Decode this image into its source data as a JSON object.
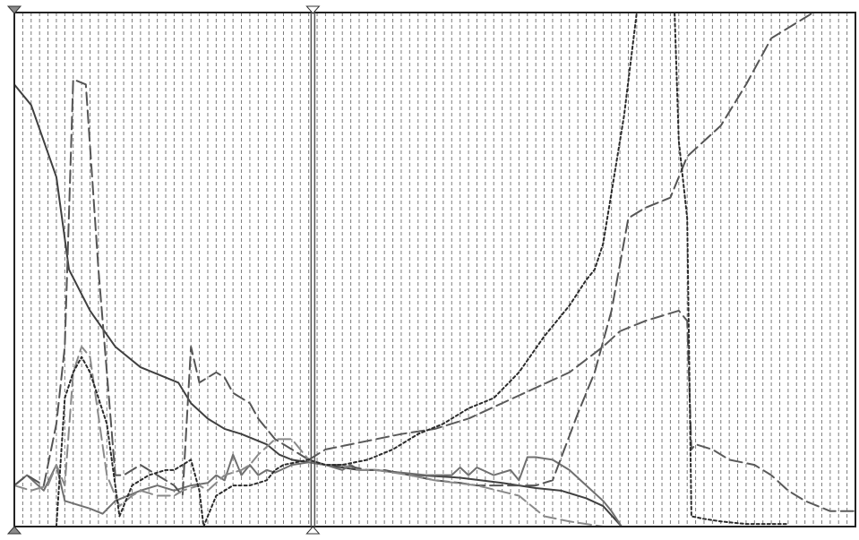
{
  "chart_data": {
    "type": "line",
    "title": "",
    "xlabel": "",
    "ylabel": "",
    "xlim": [
      0,
      100
    ],
    "ylim": [
      0,
      100
    ],
    "grid": "vertical-dashed",
    "grid_lines": 100,
    "legend": "none",
    "marker_position": 35.5,
    "series": [
      {
        "id": "solid-dark",
        "style": "solid",
        "color": "#404040",
        "points": [
          [
            0,
            86
          ],
          [
            2,
            82
          ],
          [
            5,
            68
          ],
          [
            6.5,
            50
          ],
          [
            9,
            42
          ],
          [
            12,
            35
          ],
          [
            15,
            31
          ],
          [
            18,
            29
          ],
          [
            19.5,
            28
          ],
          [
            21,
            24
          ],
          [
            23,
            21
          ],
          [
            25,
            19
          ],
          [
            27,
            18
          ],
          [
            28.5,
            17
          ],
          [
            30,
            16
          ],
          [
            31.5,
            14
          ],
          [
            33,
            13
          ],
          [
            35,
            12.5
          ],
          [
            37,
            12
          ],
          [
            39,
            11.5
          ],
          [
            41,
            11
          ],
          [
            43,
            11
          ],
          [
            48,
            10
          ],
          [
            53,
            9.5
          ],
          [
            58,
            8.5
          ],
          [
            60,
            8
          ],
          [
            62,
            7.5
          ],
          [
            65,
            7
          ],
          [
            68,
            5.5
          ],
          [
            70,
            4
          ],
          [
            72.2,
            0
          ],
          [
            79,
            0
          ]
        ]
      },
      {
        "id": "solid-gray",
        "style": "solid",
        "color": "#707070",
        "points": [
          [
            0,
            8
          ],
          [
            1.5,
            10
          ],
          [
            3.5,
            7
          ],
          [
            5,
            12
          ],
          [
            6,
            5
          ],
          [
            7,
            4.5
          ],
          [
            9,
            3.5
          ],
          [
            10.5,
            2.5
          ],
          [
            12,
            5
          ],
          [
            15,
            7
          ],
          [
            17,
            8
          ],
          [
            19,
            7
          ],
          [
            21,
            8
          ],
          [
            23,
            8.5
          ],
          [
            24,
            10
          ],
          [
            25,
            9
          ],
          [
            26,
            14
          ],
          [
            27,
            10
          ],
          [
            28,
            12
          ],
          [
            29,
            10
          ],
          [
            30,
            11
          ],
          [
            31,
            10.5
          ],
          [
            33,
            12
          ],
          [
            35,
            12.5
          ],
          [
            37,
            12
          ],
          [
            39,
            11
          ],
          [
            40,
            12
          ],
          [
            41,
            11
          ],
          [
            43,
            11
          ],
          [
            46,
            10.5
          ],
          [
            49,
            10
          ],
          [
            52,
            10
          ],
          [
            53,
            11.5
          ],
          [
            54,
            10
          ],
          [
            55,
            11.5
          ],
          [
            57,
            10
          ],
          [
            59,
            11
          ],
          [
            60,
            9
          ],
          [
            61,
            13.5
          ],
          [
            62,
            13.5
          ],
          [
            64,
            13
          ],
          [
            66,
            11
          ],
          [
            68,
            8
          ],
          [
            70,
            5
          ],
          [
            71,
            3
          ],
          [
            72.2,
            0
          ]
        ]
      },
      {
        "id": "dash-dark",
        "style": "dashed",
        "color": "#555555",
        "points": [
          [
            0,
            8
          ],
          [
            1.5,
            10
          ],
          [
            3.5,
            8
          ],
          [
            5,
            20
          ],
          [
            6,
            35
          ],
          [
            7,
            87
          ],
          [
            8.5,
            86
          ],
          [
            10,
            50
          ],
          [
            12,
            10
          ],
          [
            13,
            10
          ],
          [
            15,
            12
          ],
          [
            17,
            10
          ],
          [
            19,
            8
          ],
          [
            20,
            6
          ],
          [
            21,
            35
          ],
          [
            22,
            28
          ],
          [
            24,
            30
          ],
          [
            25,
            29
          ],
          [
            26,
            26
          ],
          [
            28,
            24
          ],
          [
            29,
            21
          ],
          [
            31,
            17
          ],
          [
            33,
            15
          ],
          [
            35,
            13
          ],
          [
            37,
            12
          ],
          [
            39,
            12
          ],
          [
            42,
            11
          ],
          [
            44,
            11
          ],
          [
            47,
            10
          ],
          [
            50,
            9
          ],
          [
            53,
            8.5
          ],
          [
            55,
            8
          ],
          [
            57,
            8
          ],
          [
            60,
            8
          ],
          [
            62,
            8
          ],
          [
            64,
            9
          ],
          [
            67,
            22
          ],
          [
            69,
            30
          ],
          [
            71,
            42
          ],
          [
            73,
            60
          ],
          [
            75,
            62
          ],
          [
            78,
            64
          ],
          [
            80,
            72
          ],
          [
            84,
            78
          ],
          [
            87,
            86
          ],
          [
            90,
            95
          ],
          [
            95,
            100
          ]
        ]
      },
      {
        "id": "dash-light",
        "style": "dashed",
        "color": "#8a8a8a",
        "points": [
          [
            0,
            8
          ],
          [
            2,
            7
          ],
          [
            4,
            8
          ],
          [
            5,
            12
          ],
          [
            6,
            8
          ],
          [
            7,
            30
          ],
          [
            8,
            35
          ],
          [
            9,
            33
          ],
          [
            11,
            10
          ],
          [
            12.5,
            4
          ],
          [
            14,
            6
          ],
          [
            15,
            7
          ],
          [
            17,
            6
          ],
          [
            19,
            6
          ],
          [
            20,
            7
          ],
          [
            22,
            8
          ],
          [
            23,
            7
          ],
          [
            25,
            10
          ],
          [
            27,
            11
          ],
          [
            28,
            12
          ],
          [
            29,
            14
          ],
          [
            31,
            17
          ],
          [
            33,
            17
          ],
          [
            35,
            13
          ],
          [
            37,
            12
          ],
          [
            39,
            12
          ],
          [
            41,
            11
          ],
          [
            43,
            11
          ],
          [
            47,
            10
          ],
          [
            50,
            9
          ],
          [
            55,
            8
          ],
          [
            60,
            6
          ],
          [
            63,
            2
          ],
          [
            66,
            1
          ],
          [
            68,
            0.5
          ],
          [
            70,
            0
          ],
          [
            79,
            0
          ]
        ]
      },
      {
        "id": "dash-right",
        "style": "dashed",
        "color": "#5a5a5a",
        "points": [
          [
            35,
            13
          ],
          [
            37,
            15
          ],
          [
            40,
            16
          ],
          [
            43,
            17
          ],
          [
            46,
            18
          ],
          [
            50,
            19
          ],
          [
            54,
            21
          ],
          [
            58,
            24
          ],
          [
            62,
            27
          ],
          [
            66,
            30
          ],
          [
            70,
            35
          ],
          [
            72,
            38
          ],
          [
            75,
            40
          ],
          [
            78,
            41.5
          ],
          [
            79,
            42
          ],
          [
            80,
            40
          ],
          [
            80.5,
            15
          ],
          [
            81,
            16
          ],
          [
            83,
            15
          ],
          [
            85,
            13
          ],
          [
            88,
            12
          ],
          [
            90,
            10
          ],
          [
            92,
            7
          ],
          [
            94,
            5
          ],
          [
            97,
            3
          ],
          [
            100,
            3
          ]
        ]
      },
      {
        "id": "dotted",
        "style": "dotted",
        "color": "#2b2b2b",
        "points": [
          [
            5,
            0
          ],
          [
            6,
            25
          ],
          [
            7,
            30
          ],
          [
            8,
            33
          ],
          [
            9,
            30
          ],
          [
            11,
            20
          ],
          [
            12.5,
            2
          ],
          [
            14,
            8
          ],
          [
            16,
            10
          ],
          [
            18,
            11
          ],
          [
            19,
            11
          ],
          [
            20,
            12
          ],
          [
            21,
            13
          ],
          [
            22,
            7
          ],
          [
            22.5,
            0
          ],
          [
            24,
            6
          ],
          [
            26,
            8
          ],
          [
            28,
            8
          ],
          [
            30,
            9
          ],
          [
            31,
            11
          ],
          [
            32,
            12
          ],
          [
            35,
            13
          ],
          [
            37,
            12
          ],
          [
            39,
            12
          ],
          [
            42,
            13
          ],
          [
            45,
            15
          ],
          [
            48,
            18
          ],
          [
            51,
            20
          ],
          [
            54,
            23
          ],
          [
            57,
            25
          ],
          [
            60,
            30
          ],
          [
            63,
            37
          ],
          [
            66,
            43
          ],
          [
            68,
            48
          ],
          [
            69,
            50
          ],
          [
            70,
            55
          ],
          [
            71,
            65
          ],
          [
            72.5,
            80
          ],
          [
            74,
            100
          ],
          [
            77.5,
            100
          ],
          [
            78.5,
            100
          ],
          [
            79,
            75
          ],
          [
            80,
            60
          ],
          [
            80.5,
            2
          ],
          [
            82,
            1.5
          ],
          [
            84,
            1
          ],
          [
            87,
            0.5
          ],
          [
            90,
            0.5
          ],
          [
            92,
            0.5
          ]
        ]
      }
    ]
  }
}
